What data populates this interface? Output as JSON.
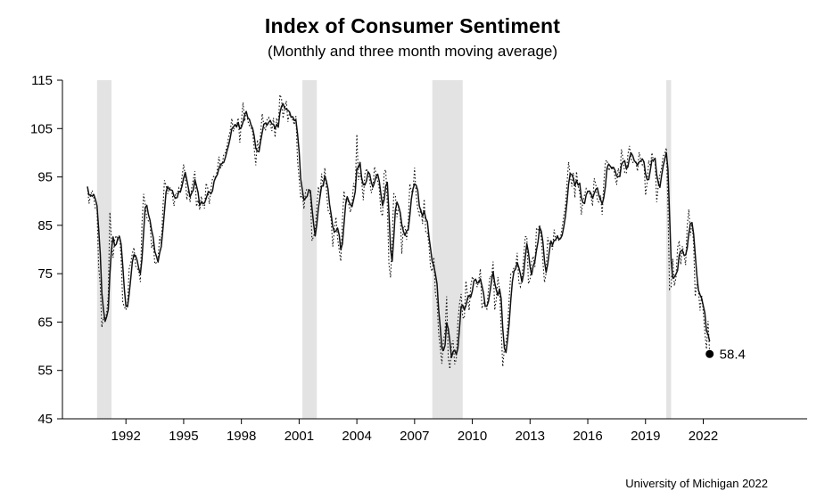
{
  "title": "Index of Consumer Sentiment",
  "subtitle": "(Monthly and three month moving average)",
  "source": "University of Michigan 2022",
  "annotation": "58.4",
  "chart_data": {
    "type": "line",
    "title": "Index of Consumer Sentiment",
    "subtitle": "(Monthly and three month moving average)",
    "xlabel": "",
    "ylabel": "",
    "ylim": [
      45,
      115
    ],
    "yticks": [
      45,
      55,
      65,
      75,
      85,
      95,
      105,
      115
    ],
    "xticks": [
      1992,
      1995,
      1998,
      2001,
      2004,
      2007,
      2010,
      2013,
      2016,
      2019,
      2022
    ],
    "xlim": [
      1988.7,
      2027.4
    ],
    "grid": false,
    "legend": "none",
    "line_color": "#111111",
    "band_color": "#e3e3e3",
    "recession_bands": [
      [
        1990.5,
        1991.25
      ],
      [
        2001.17,
        2001.92
      ],
      [
        2007.92,
        2009.5
      ],
      [
        2020.08,
        2020.33
      ]
    ],
    "last_value": 58.4,
    "last_point_label": "58.4",
    "series": [
      {
        "name": "Monthly",
        "style": "dotted",
        "start_year": 1990,
        "start_month": 1,
        "values": [
          93.0,
          89.5,
          91.3,
          92.2,
          90.6,
          88.3,
          88.2,
          76.4,
          72.8,
          63.9,
          66.0,
          65.5,
          66.8,
          70.4,
          87.7,
          81.8,
          78.3,
          82.1,
          82.9,
          82.0,
          83.0,
          78.3,
          69.1,
          68.2,
          67.5,
          68.8,
          76.0,
          77.2,
          79.2,
          80.4,
          76.6,
          76.1,
          75.5,
          73.3,
          85.3,
          91.5,
          89.3,
          86.6,
          85.9,
          85.6,
          80.3,
          81.5,
          77.0,
          77.3,
          77.9,
          82.7,
          81.2,
          88.2,
          94.3,
          93.2,
          91.5,
          92.6,
          92.8,
          91.2,
          89.0,
          91.7,
          91.5,
          92.7,
          91.6,
          95.1,
          97.6,
          95.1,
          90.3,
          92.5,
          89.8,
          92.7,
          94.4,
          96.2,
          88.9,
          90.2,
          88.2,
          91.0,
          89.3,
          88.5,
          93.7,
          92.7,
          89.4,
          92.4,
          94.7,
          95.3,
          94.7,
          96.5,
          99.2,
          96.9,
          97.4,
          99.7,
          100.0,
          101.4,
          103.2,
          104.5,
          107.1,
          104.4,
          106.0,
          105.6,
          107.2,
          102.1,
          106.6,
          110.4,
          106.5,
          108.7,
          106.5,
          105.6,
          105.2,
          104.4,
          100.9,
          97.4,
          102.7,
          100.5,
          103.9,
          108.1,
          105.7,
          104.6,
          106.8,
          107.3,
          106.0,
          104.5,
          107.2,
          103.2,
          107.2,
          105.4,
          112.0,
          111.3,
          107.1,
          109.2,
          110.7,
          106.4,
          108.3,
          107.3,
          106.8,
          105.8,
          107.6,
          98.4,
          94.7,
          90.6,
          91.5,
          88.4,
          92.0,
          92.6,
          92.4,
          91.5,
          81.8,
          82.7,
          83.9,
          88.8,
          93.0,
          90.7,
          95.7,
          93.0,
          96.9,
          92.4,
          88.1,
          87.6,
          86.1,
          80.6,
          84.2,
          86.7,
          82.4,
          79.9,
          77.6,
          86.0,
          92.1,
          89.7,
          90.9,
          89.3,
          87.7,
          89.6,
          93.7,
          92.6,
          103.8,
          94.4,
          95.8,
          94.2,
          90.2,
          95.6,
          96.7,
          95.9,
          94.2,
          91.7,
          92.8,
          97.1,
          95.5,
          94.1,
          92.6,
          87.7,
          86.9,
          96.0,
          96.5,
          89.1,
          76.9,
          74.2,
          81.6,
          91.5,
          91.2,
          86.7,
          88.9,
          87.4,
          79.1,
          84.9,
          84.7,
          82.0,
          85.4,
          93.6,
          92.1,
          91.7,
          96.9,
          91.3,
          88.4,
          87.1,
          88.3,
          85.3,
          90.4,
          83.4,
          83.4,
          80.9,
          76.1,
          75.5,
          78.4,
          70.8,
          69.5,
          62.6,
          59.8,
          56.4,
          61.2,
          63.0,
          70.3,
          57.6,
          55.3,
          60.1,
          61.2,
          56.3,
          57.3,
          65.1,
          68.7,
          70.8,
          66.0,
          65.7,
          73.5,
          70.6,
          67.4,
          72.5,
          74.4,
          73.6,
          73.6,
          72.2,
          73.6,
          76.0,
          67.8,
          68.9,
          68.2,
          67.7,
          71.6,
          74.5,
          74.2,
          77.5,
          67.5,
          69.8,
          74.3,
          71.5,
          63.7,
          55.8,
          59.5,
          60.8,
          63.7,
          69.9,
          75.0,
          75.3,
          76.2,
          76.4,
          79.3,
          73.2,
          72.3,
          74.3,
          78.3,
          82.6,
          82.7,
          72.9,
          73.8,
          77.6,
          78.6,
          76.4,
          84.5,
          84.1,
          85.1,
          82.1,
          77.5,
          73.2,
          75.1,
          82.5,
          81.2,
          81.6,
          80.0,
          84.1,
          81.9,
          82.5,
          81.8,
          82.5,
          84.6,
          86.9,
          88.8,
          93.6,
          98.1,
          95.4,
          93.0,
          95.9,
          90.7,
          96.1,
          93.1,
          91.9,
          87.2,
          90.0,
          91.3,
          92.6,
          92.0,
          91.7,
          91.0,
          89.0,
          94.7,
          93.5,
          90.0,
          89.8,
          91.2,
          87.2,
          93.8,
          98.2,
          98.5,
          96.3,
          96.9,
          97.0,
          97.1,
          95.0,
          93.4,
          96.8,
          95.1,
          100.7,
          98.5,
          95.9,
          95.7,
          99.7,
          101.4,
          98.8,
          98.0,
          98.2,
          97.9,
          96.2,
          100.1,
          98.6,
          97.5,
          98.3,
          91.2,
          93.8,
          98.4,
          97.2,
          100.0,
          98.2,
          98.4,
          89.8,
          93.2,
          95.5,
          96.8,
          99.3,
          99.8,
          101.0,
          89.1,
          71.8,
          72.3,
          78.1,
          72.5,
          74.1,
          80.4,
          81.8,
          76.9,
          80.7,
          79.0,
          76.8,
          84.9,
          88.3,
          82.9,
          85.5,
          81.2,
          70.3,
          72.8,
          71.7,
          67.4,
          70.6,
          67.2,
          62.8,
          59.4,
          65.2,
          58.4
        ]
      },
      {
        "name": "Three month moving average",
        "style": "solid",
        "derived": "3-month moving average of Monthly series"
      }
    ]
  }
}
